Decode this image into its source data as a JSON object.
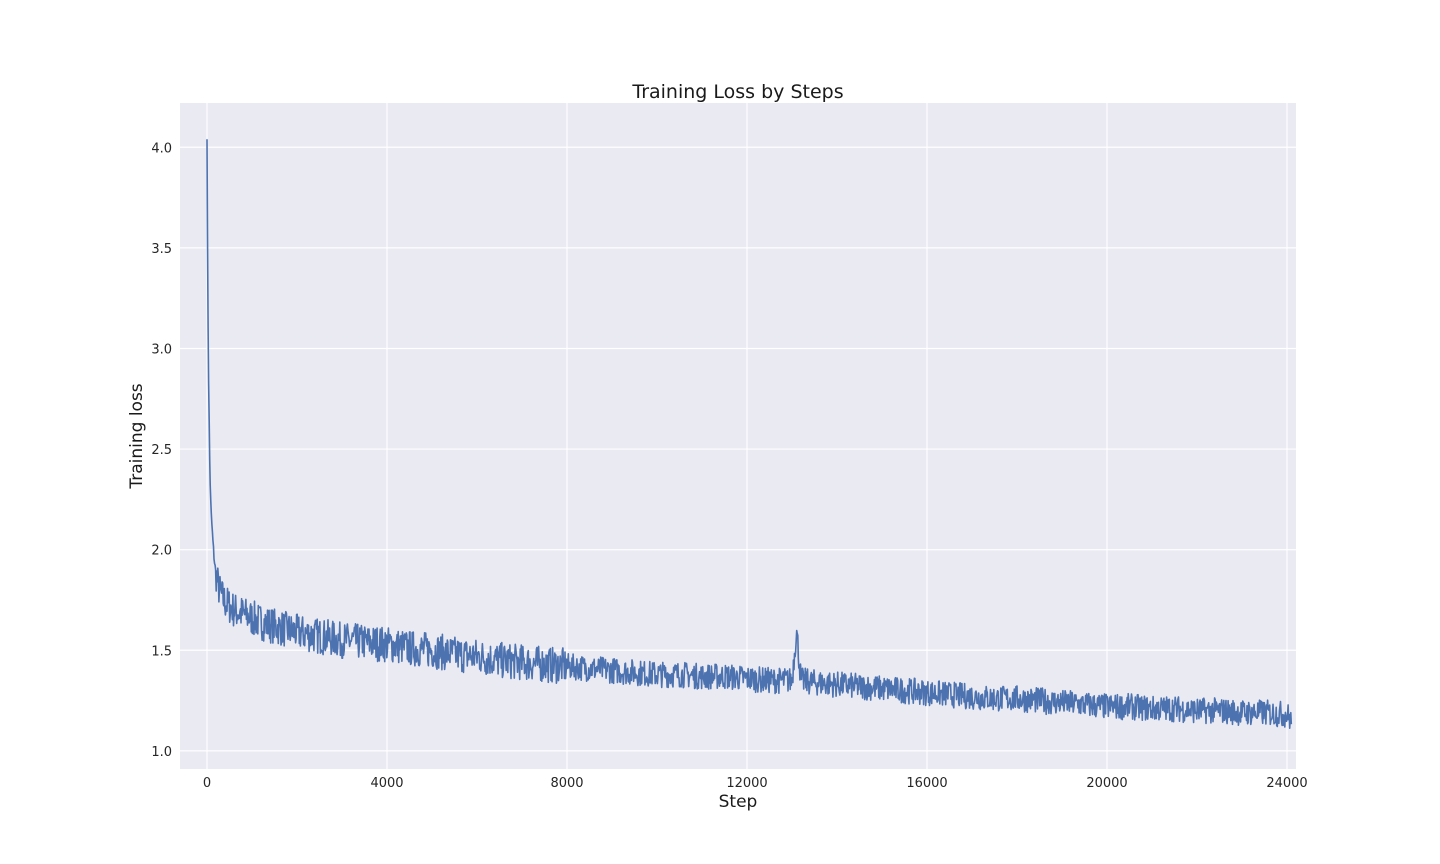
{
  "chart_data": {
    "type": "line",
    "title": "Training Loss by Steps",
    "xlabel": "Step",
    "ylabel": "Training loss",
    "xlim": [
      -600,
      24200
    ],
    "ylim": [
      0.91,
      4.22
    ],
    "xticks": [
      0,
      4000,
      8000,
      12000,
      16000,
      20000,
      24000
    ],
    "yticks": [
      1.0,
      1.5,
      2.0,
      2.5,
      3.0,
      3.5,
      4.0
    ],
    "ytick_labels": [
      "1.0",
      "1.5",
      "2.0",
      "2.5",
      "3.0",
      "3.5",
      "4.0"
    ],
    "grid": true,
    "legend": "none",
    "colors": {
      "line": "#4c72b0",
      "plot_background": "#eaeaf2",
      "grid": "#ffffff"
    },
    "series": [
      {
        "x": [
          0,
          20,
          40,
          60,
          80,
          100,
          130,
          160,
          200,
          250,
          300,
          400,
          500,
          600,
          800,
          1000,
          1200,
          1500,
          1800,
          2000,
          2500,
          3000,
          3500,
          4000,
          4500,
          5000,
          5500,
          6000,
          6500,
          7000,
          7500,
          8000,
          8500,
          9000,
          9500,
          10000,
          10500,
          11000,
          11500,
          12000,
          12500,
          13000,
          13100,
          13200,
          13500,
          14000,
          14500,
          15000,
          15500,
          16000,
          16500,
          17000,
          17500,
          18000,
          18500,
          19000,
          19500,
          20000,
          20500,
          21000,
          21500,
          22000,
          22500,
          23000,
          23500,
          24000,
          24100
        ],
        "values": [
          4.06,
          3.2,
          2.75,
          2.45,
          2.25,
          2.15,
          2.05,
          1.95,
          1.88,
          1.82,
          1.78,
          1.74,
          1.72,
          1.7,
          1.68,
          1.66,
          1.64,
          1.62,
          1.6,
          1.59,
          1.57,
          1.55,
          1.54,
          1.53,
          1.51,
          1.5,
          1.48,
          1.47,
          1.45,
          1.44,
          1.43,
          1.42,
          1.41,
          1.4,
          1.39,
          1.38,
          1.38,
          1.37,
          1.37,
          1.36,
          1.35,
          1.35,
          1.6,
          1.35,
          1.34,
          1.33,
          1.32,
          1.31,
          1.3,
          1.29,
          1.28,
          1.27,
          1.26,
          1.26,
          1.25,
          1.24,
          1.23,
          1.22,
          1.22,
          1.21,
          1.21,
          1.2,
          1.2,
          1.19,
          1.19,
          1.18,
          1.15
        ]
      }
    ]
  }
}
